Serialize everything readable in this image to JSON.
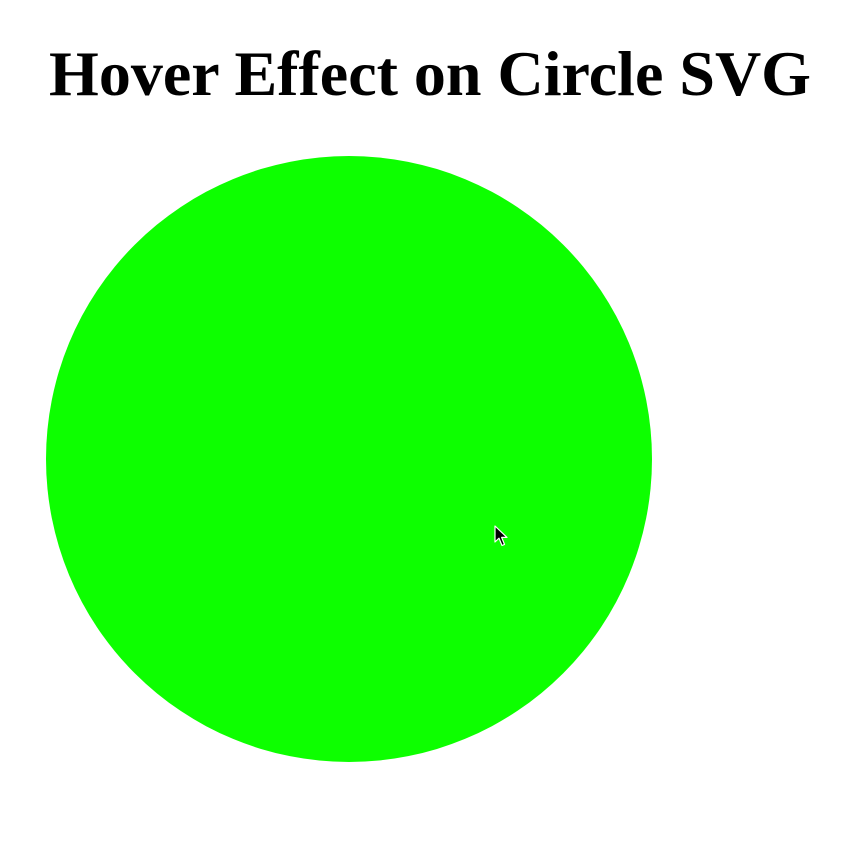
{
  "page": {
    "title": "Hover Effect on Circle SVG"
  },
  "circle": {
    "fill_color": "#0dff00"
  },
  "cursor": {
    "icon": "arrow-pointer-icon"
  }
}
